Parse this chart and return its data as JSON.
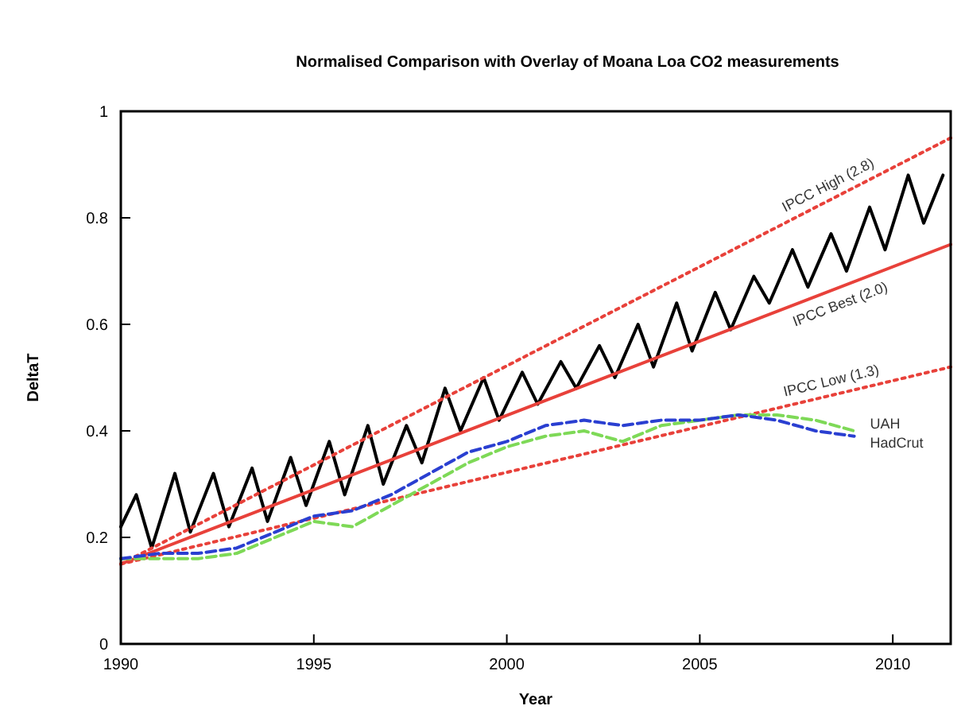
{
  "chart_data": {
    "type": "line",
    "title": "Normalised Comparison with Overlay of Moana Loa CO2 measurements",
    "xlabel": "Year",
    "ylabel": "DeltaT",
    "xlim": [
      1990,
      2011.5
    ],
    "ylim": [
      0,
      1
    ],
    "xticks": [
      1990,
      1995,
      2000,
      2005,
      2010
    ],
    "yticks": [
      0,
      0.2,
      0.4,
      0.6,
      0.8,
      1
    ],
    "grid": false,
    "marker": "none",
    "series": [
      {
        "color": "#000000",
        "line_style": "solid",
        "x": [
          1990,
          1990.4,
          1990.8,
          1991.4,
          1991.8,
          1992.4,
          1992.8,
          1993.4,
          1993.8,
          1994.4,
          1994.8,
          1995.4,
          1995.8,
          1996.4,
          1996.8,
          1997.4,
          1997.8,
          1998.4,
          1998.8,
          1999.4,
          1999.8,
          2000.4,
          2000.8,
          2001.4,
          2001.8,
          2002.4,
          2002.8,
          2003.4,
          2003.8,
          2004.4,
          2004.8,
          2005.4,
          2005.8,
          2006.4,
          2006.8,
          2007.4,
          2007.8,
          2008.4,
          2008.8,
          2009.4,
          2009.8,
          2010.4,
          2010.8,
          2011.3
        ],
        "values": [
          0.22,
          0.28,
          0.18,
          0.32,
          0.21,
          0.32,
          0.22,
          0.33,
          0.23,
          0.35,
          0.26,
          0.38,
          0.28,
          0.41,
          0.3,
          0.41,
          0.34,
          0.48,
          0.4,
          0.5,
          0.42,
          0.51,
          0.45,
          0.53,
          0.48,
          0.56,
          0.5,
          0.6,
          0.52,
          0.64,
          0.55,
          0.66,
          0.59,
          0.69,
          0.64,
          0.74,
          0.67,
          0.77,
          0.7,
          0.82,
          0.74,
          0.88,
          0.79,
          0.88
        ]
      },
      {
        "name": "IPCC High (2.8)",
        "color": "#e8413a",
        "line_style": "dotted",
        "x": [
          1990,
          2011.5
        ],
        "values": [
          0.15,
          0.95
        ]
      },
      {
        "name": "IPCC Best (2.0)",
        "color": "#e8413a",
        "line_style": "solid",
        "x": [
          1990,
          2011.5
        ],
        "values": [
          0.15,
          0.75
        ]
      },
      {
        "name": "IPCC Low (1.3)",
        "color": "#e8413a",
        "line_style": "dotted",
        "x": [
          1990,
          2011.5
        ],
        "values": [
          0.15,
          0.52
        ]
      },
      {
        "name": "UAH",
        "color": "#7ed957",
        "line_style": "dashed",
        "x": [
          1990,
          1991,
          1992,
          1993,
          1994,
          1995,
          1996,
          1997,
          1998,
          1999,
          2000,
          2001,
          2002,
          2003,
          2004,
          2005,
          2006,
          2007,
          2008,
          2009
        ],
        "values": [
          0.16,
          0.16,
          0.16,
          0.17,
          0.2,
          0.23,
          0.22,
          0.26,
          0.3,
          0.34,
          0.37,
          0.39,
          0.4,
          0.38,
          0.41,
          0.42,
          0.43,
          0.43,
          0.42,
          0.4
        ]
      },
      {
        "name": "HadCrut",
        "color": "#2a3fd1",
        "line_style": "dashed",
        "x": [
          1990,
          1991,
          1992,
          1993,
          1994,
          1995,
          1996,
          1997,
          1998,
          1999,
          2000,
          2001,
          2002,
          2003,
          2004,
          2005,
          2006,
          2007,
          2008,
          2009
        ],
        "values": [
          0.16,
          0.17,
          0.17,
          0.18,
          0.21,
          0.24,
          0.25,
          0.28,
          0.32,
          0.36,
          0.38,
          0.41,
          0.42,
          0.41,
          0.42,
          0.42,
          0.43,
          0.42,
          0.4,
          0.39
        ]
      }
    ]
  }
}
